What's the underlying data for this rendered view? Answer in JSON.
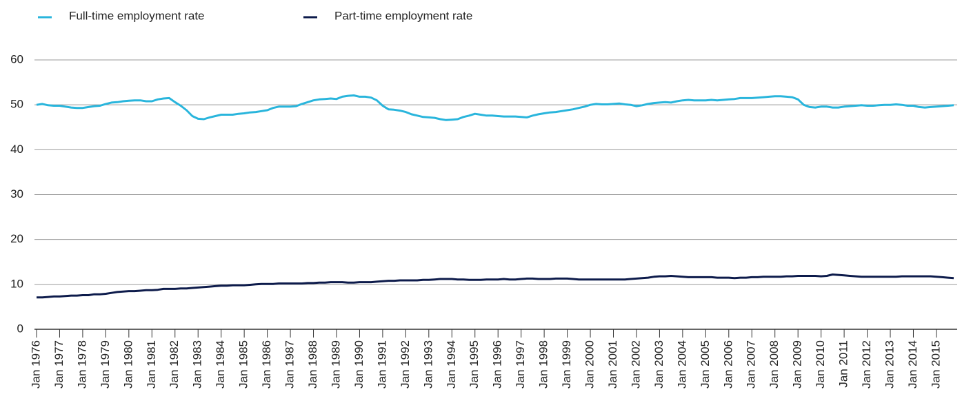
{
  "chart_data": {
    "type": "line",
    "categories": [
      "Jan 1976",
      null,
      null,
      null,
      "Jan 1977",
      null,
      null,
      null,
      "Jan 1978",
      null,
      null,
      null,
      "Jan 1979",
      null,
      null,
      null,
      "Jan 1980",
      null,
      null,
      null,
      "Jan 1981",
      null,
      null,
      null,
      "Jan 1982",
      null,
      null,
      null,
      "Jan 1983",
      null,
      null,
      null,
      "Jan 1984",
      null,
      null,
      null,
      "Jan 1985",
      null,
      null,
      null,
      "Jan 1986",
      null,
      null,
      null,
      "Jan 1987",
      null,
      null,
      null,
      "Jan 1988",
      null,
      null,
      null,
      "Jan 1989",
      null,
      null,
      null,
      "Jan 1990",
      null,
      null,
      null,
      "Jan 1991",
      null,
      null,
      null,
      "Jan 1992",
      null,
      null,
      null,
      "Jan 1993",
      null,
      null,
      null,
      "Jan 1994",
      null,
      null,
      null,
      "Jan 1995",
      null,
      null,
      null,
      "Jan 1996",
      null,
      null,
      null,
      "Jan 1997",
      null,
      null,
      null,
      "Jan 1998",
      null,
      null,
      null,
      "Jan 1999",
      null,
      null,
      null,
      "Jan 2000",
      null,
      null,
      null,
      "Jan 2001",
      null,
      null,
      null,
      "Jan 2002",
      null,
      null,
      null,
      "Jan 2003",
      null,
      null,
      null,
      "Jan 2004",
      null,
      null,
      null,
      "Jan 2005",
      null,
      null,
      null,
      "Jan 2006",
      null,
      null,
      null,
      "Jan 2007",
      null,
      null,
      null,
      "Jan 2008",
      null,
      null,
      null,
      "Jan 2009",
      null,
      null,
      null,
      "Jan 2010",
      null,
      null,
      null,
      "Jan 2011",
      null,
      null,
      null,
      "Jan 2012",
      null,
      null,
      null,
      "Jan 2013",
      null,
      null,
      null,
      "Jan 2014",
      null,
      null,
      null,
      "Jan 2015",
      null,
      null,
      null
    ],
    "series": [
      {
        "name": "Full-time employment rate",
        "color": "#29b5dc",
        "values": [
          50.0,
          50.2,
          49.9,
          49.8,
          49.8,
          49.6,
          49.4,
          49.3,
          49.3,
          49.5,
          49.7,
          49.8,
          50.2,
          50.5,
          50.6,
          50.8,
          50.9,
          51.0,
          51.0,
          50.8,
          50.8,
          51.2,
          51.4,
          51.5,
          50.6,
          49.8,
          48.8,
          47.5,
          46.9,
          46.8,
          47.2,
          47.5,
          47.8,
          47.8,
          47.8,
          48.0,
          48.1,
          48.3,
          48.4,
          48.6,
          48.8,
          49.3,
          49.6,
          49.6,
          49.6,
          49.7,
          50.2,
          50.6,
          51.0,
          51.2,
          51.3,
          51.4,
          51.3,
          51.8,
          52.0,
          52.1,
          51.8,
          51.8,
          51.6,
          51.0,
          49.8,
          49.0,
          48.9,
          48.7,
          48.4,
          47.9,
          47.6,
          47.3,
          47.2,
          47.1,
          46.8,
          46.6,
          46.7,
          46.8,
          47.3,
          47.6,
          48.0,
          47.8,
          47.6,
          47.6,
          47.5,
          47.4,
          47.4,
          47.4,
          47.3,
          47.2,
          47.6,
          47.9,
          48.1,
          48.3,
          48.4,
          48.6,
          48.8,
          49.0,
          49.3,
          49.6,
          50.0,
          50.2,
          50.1,
          50.1,
          50.2,
          50.3,
          50.1,
          50.0,
          49.7,
          49.9,
          50.2,
          50.4,
          50.5,
          50.6,
          50.5,
          50.8,
          51.0,
          51.1,
          51.0,
          51.0,
          51.0,
          51.1,
          51.0,
          51.1,
          51.2,
          51.3,
          51.5,
          51.5,
          51.5,
          51.6,
          51.7,
          51.8,
          51.9,
          51.9,
          51.8,
          51.7,
          51.2,
          50.0,
          49.5,
          49.4,
          49.6,
          49.6,
          49.4,
          49.4,
          49.6,
          49.7,
          49.8,
          49.9,
          49.8,
          49.8,
          49.9,
          50.0,
          50.0,
          50.1,
          50.0,
          49.8,
          49.8,
          49.5,
          49.4,
          49.5,
          49.6,
          49.7,
          49.8,
          49.9
        ]
      },
      {
        "name": "Part-time employment rate",
        "color": "#0d1b4b",
        "values": [
          7.1,
          7.1,
          7.2,
          7.3,
          7.3,
          7.4,
          7.5,
          7.5,
          7.6,
          7.6,
          7.8,
          7.8,
          7.9,
          8.1,
          8.3,
          8.4,
          8.5,
          8.5,
          8.6,
          8.7,
          8.7,
          8.8,
          9.0,
          9.0,
          9.0,
          9.1,
          9.1,
          9.2,
          9.3,
          9.4,
          9.5,
          9.6,
          9.7,
          9.7,
          9.8,
          9.8,
          9.8,
          9.9,
          10.0,
          10.1,
          10.1,
          10.1,
          10.2,
          10.2,
          10.2,
          10.2,
          10.2,
          10.3,
          10.3,
          10.4,
          10.4,
          10.5,
          10.5,
          10.5,
          10.4,
          10.4,
          10.5,
          10.5,
          10.5,
          10.6,
          10.7,
          10.8,
          10.8,
          10.9,
          10.9,
          10.9,
          10.9,
          11.0,
          11.0,
          11.1,
          11.2,
          11.2,
          11.2,
          11.1,
          11.1,
          11.0,
          11.0,
          11.0,
          11.1,
          11.1,
          11.1,
          11.2,
          11.1,
          11.1,
          11.2,
          11.3,
          11.3,
          11.2,
          11.2,
          11.2,
          11.3,
          11.3,
          11.3,
          11.2,
          11.1,
          11.1,
          11.1,
          11.1,
          11.1,
          11.1,
          11.1,
          11.1,
          11.1,
          11.2,
          11.3,
          11.4,
          11.5,
          11.7,
          11.8,
          11.8,
          11.9,
          11.8,
          11.7,
          11.6,
          11.6,
          11.6,
          11.6,
          11.6,
          11.5,
          11.5,
          11.5,
          11.4,
          11.5,
          11.5,
          11.6,
          11.6,
          11.7,
          11.7,
          11.7,
          11.7,
          11.8,
          11.8,
          11.9,
          11.9,
          11.9,
          11.9,
          11.8,
          11.9,
          12.2,
          12.1,
          12.0,
          11.9,
          11.8,
          11.7,
          11.7,
          11.7,
          11.7,
          11.7,
          11.7,
          11.7,
          11.8,
          11.8,
          11.8,
          11.8,
          11.8,
          11.8,
          11.7,
          11.6,
          11.5,
          11.4
        ]
      }
    ],
    "ylim": [
      0,
      60
    ],
    "yticks": [
      0,
      10,
      20,
      30,
      40,
      50,
      60
    ],
    "grid": true,
    "legend": "top"
  }
}
